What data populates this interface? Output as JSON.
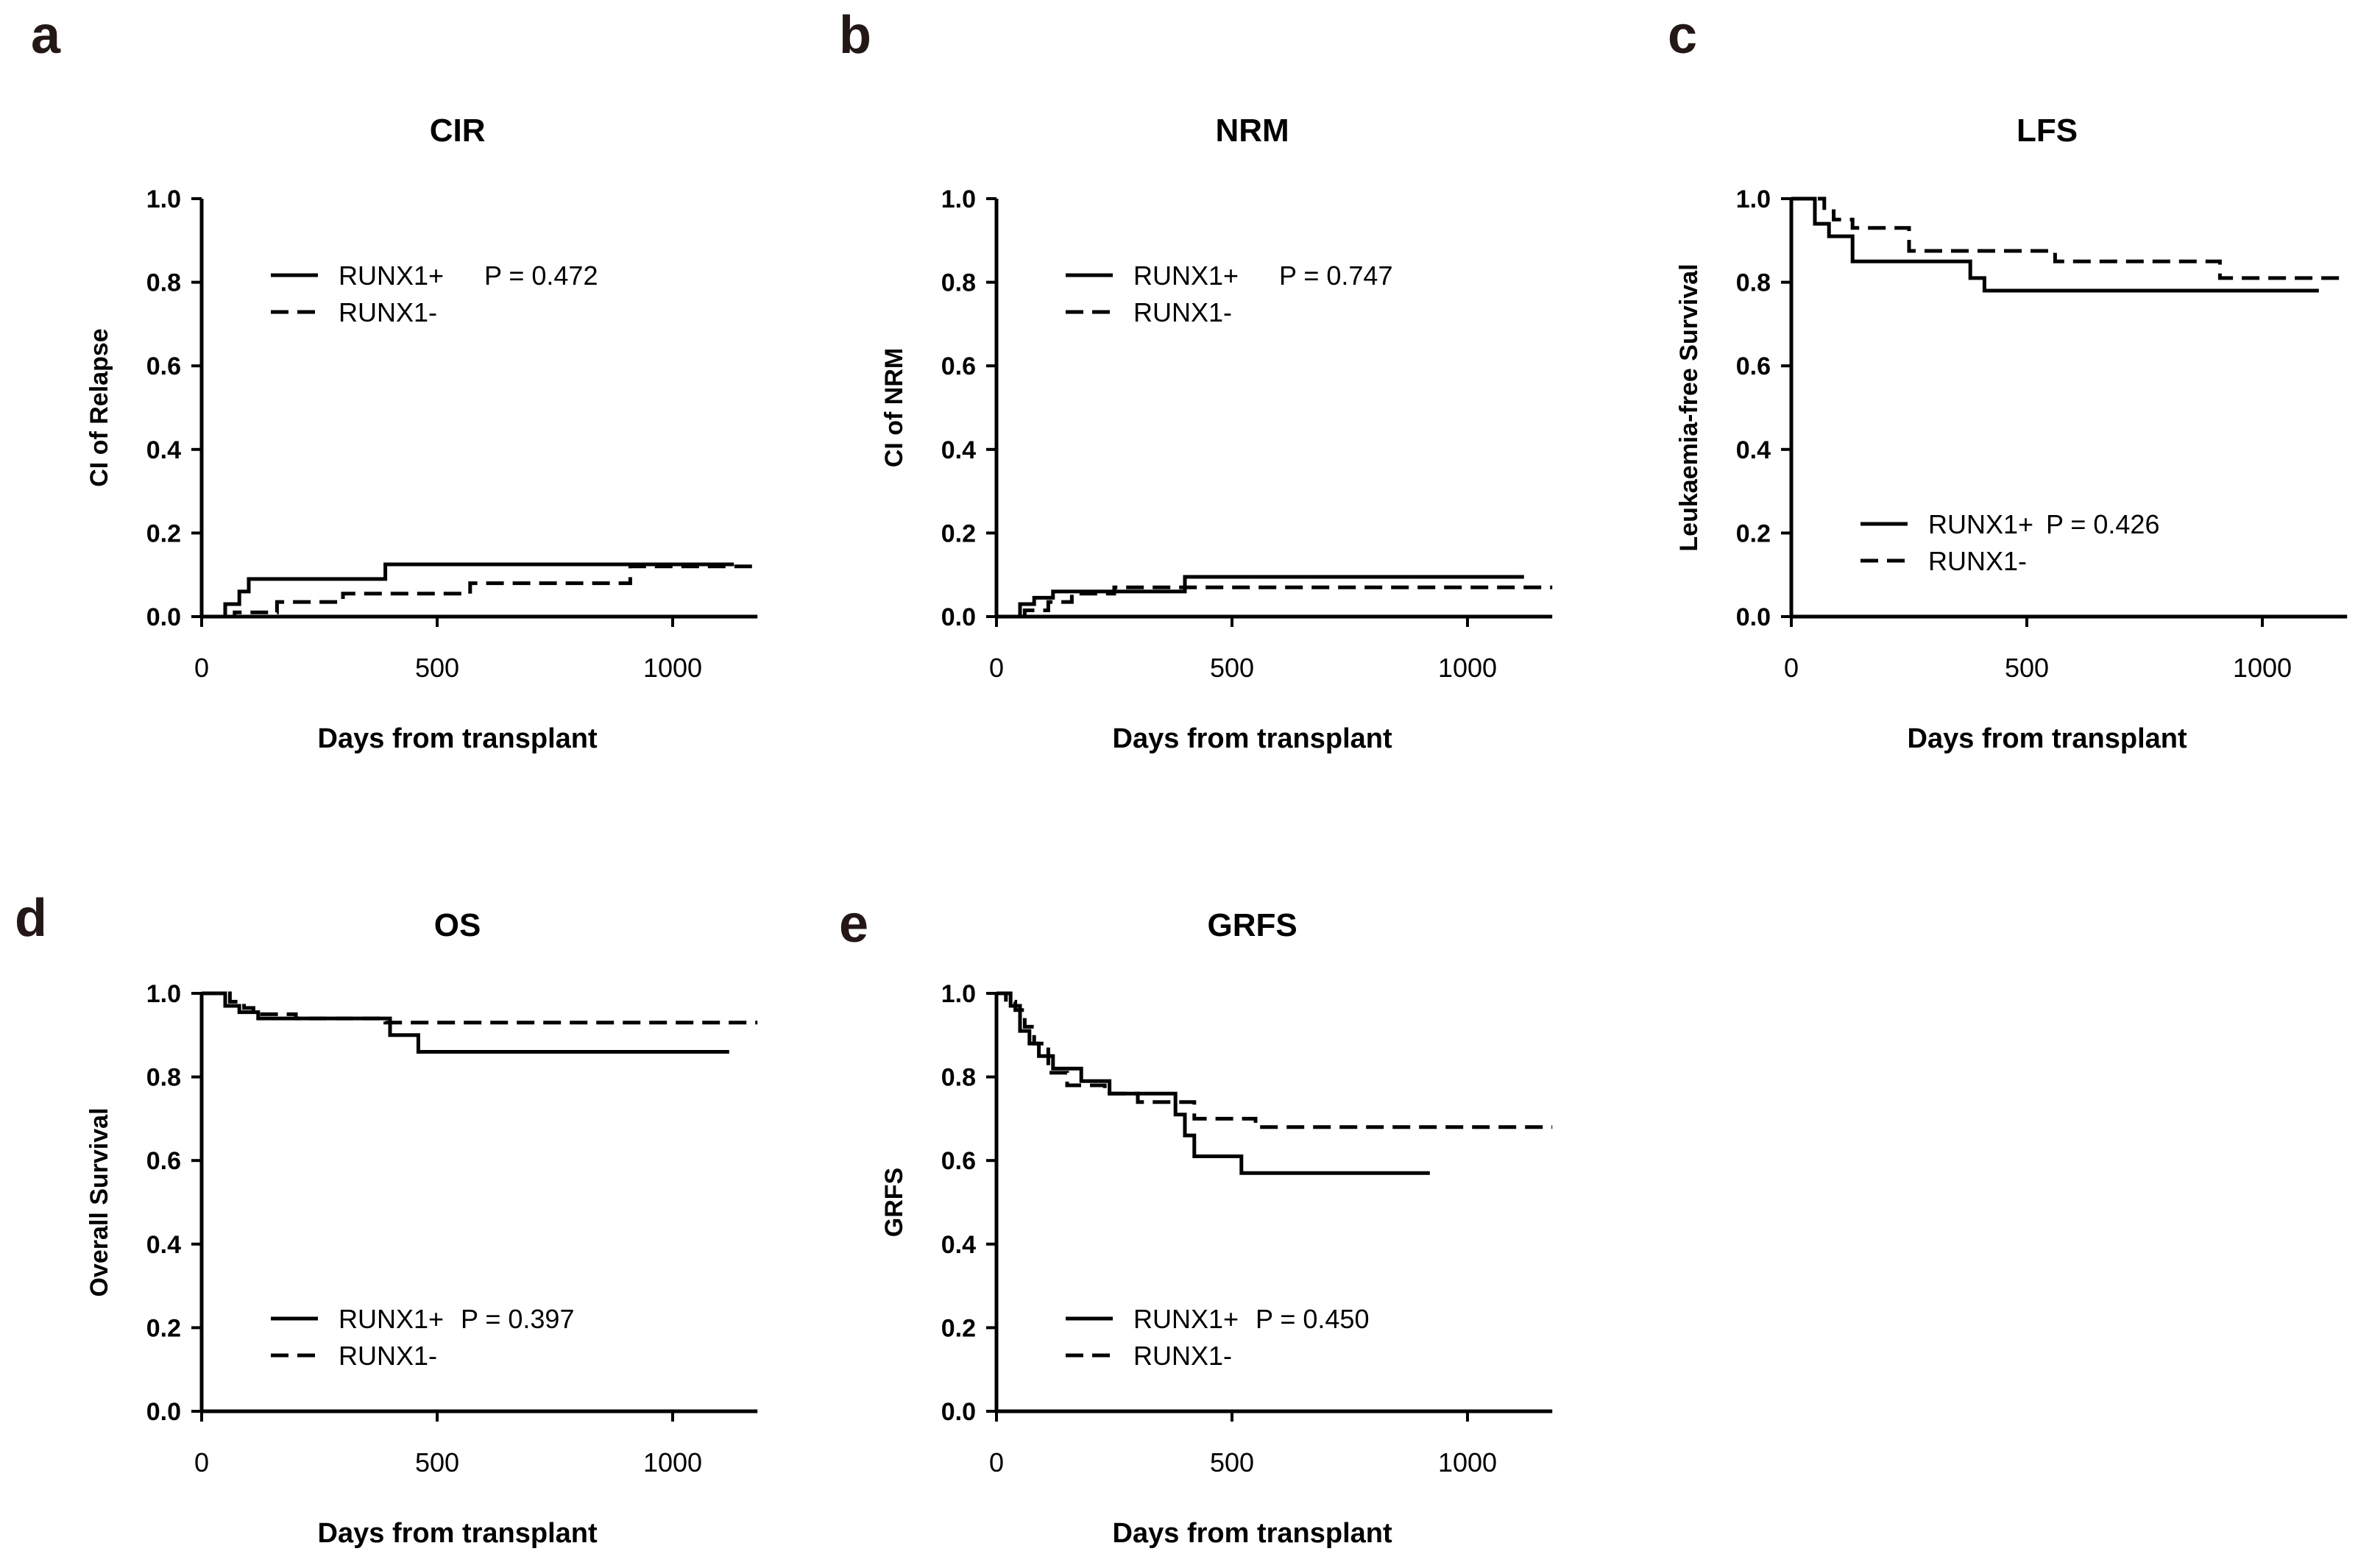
{
  "chart_data": [
    {
      "panel": "a",
      "type": "line",
      "title": "CIR",
      "xlabel": "Days from transplant",
      "ylabel": "CI of Relapse",
      "xlim": [
        0,
        1180
      ],
      "ylim": [
        0,
        1.0
      ],
      "xticks": [
        "0",
        "500",
        "1000"
      ],
      "yticks": [
        "0.0",
        "0.2",
        "0.4",
        "0.6",
        "0.8",
        "1.0"
      ],
      "legend": {
        "position": "top-left",
        "pvalue": "P = 0.472"
      },
      "series": [
        {
          "name": "RUNX1+",
          "style": "solid",
          "x": [
            0,
            50,
            50,
            80,
            80,
            100,
            100,
            130,
            130,
            390,
            390,
            1130
          ],
          "y": [
            0,
            0,
            0.03,
            0.03,
            0.06,
            0.06,
            0.09,
            0.09,
            0.09,
            0.09,
            0.125,
            0.125
          ]
        },
        {
          "name": "RUNX1-",
          "style": "dashed",
          "x": [
            0,
            70,
            70,
            160,
            160,
            300,
            300,
            570,
            570,
            910,
            910,
            1180
          ],
          "y": [
            0,
            0,
            0.01,
            0.01,
            0.035,
            0.035,
            0.055,
            0.055,
            0.08,
            0.08,
            0.12,
            0.12
          ]
        }
      ]
    },
    {
      "panel": "b",
      "type": "line",
      "title": "NRM",
      "xlabel": "Days from transplant",
      "ylabel": "CI of NRM",
      "xlim": [
        0,
        1180
      ],
      "ylim": [
        0,
        1.0
      ],
      "xticks": [
        "0",
        "500",
        "1000"
      ],
      "yticks": [
        "0.0",
        "0.2",
        "0.4",
        "0.6",
        "0.8",
        "1.0"
      ],
      "legend": {
        "position": "top-left",
        "pvalue": "P = 0.747"
      },
      "series": [
        {
          "name": "RUNX1+",
          "style": "solid",
          "x": [
            0,
            50,
            50,
            80,
            80,
            120,
            120,
            400,
            400,
            1120
          ],
          "y": [
            0,
            0,
            0.03,
            0.03,
            0.045,
            0.045,
            0.06,
            0.06,
            0.095,
            0.095
          ]
        },
        {
          "name": "RUNX1-",
          "style": "dashed",
          "x": [
            0,
            60,
            60,
            110,
            110,
            160,
            160,
            250,
            250,
            1180
          ],
          "y": [
            0,
            0,
            0.015,
            0.015,
            0.035,
            0.035,
            0.055,
            0.055,
            0.07,
            0.07
          ]
        }
      ]
    },
    {
      "panel": "c",
      "type": "line",
      "title": "LFS",
      "xlabel": "Days from transplant",
      "ylabel": "Leukaemia-free Survival",
      "xlim": [
        0,
        1180
      ],
      "ylim": [
        0,
        1.0
      ],
      "xticks": [
        "0",
        "500",
        "1000"
      ],
      "yticks": [
        "0.0",
        "0.2",
        "0.4",
        "0.6",
        "0.8",
        "1.0"
      ],
      "legend": {
        "position": "bottom-left",
        "pvalue": "P = 0.426"
      },
      "series": [
        {
          "name": "RUNX1+",
          "style": "solid",
          "x": [
            0,
            50,
            50,
            80,
            80,
            100,
            100,
            130,
            130,
            380,
            380,
            410,
            410,
            1120
          ],
          "y": [
            1.0,
            1.0,
            0.94,
            0.94,
            0.91,
            0.91,
            0.91,
            0.91,
            0.85,
            0.85,
            0.81,
            0.81,
            0.78,
            0.78
          ]
        },
        {
          "name": "RUNX1-",
          "style": "dashed",
          "x": [
            0,
            70,
            70,
            90,
            90,
            130,
            130,
            250,
            250,
            560,
            560,
            910,
            910,
            1180
          ],
          "y": [
            1.0,
            1.0,
            0.97,
            0.97,
            0.95,
            0.95,
            0.93,
            0.93,
            0.875,
            0.875,
            0.85,
            0.85,
            0.81,
            0.81
          ]
        }
      ]
    },
    {
      "panel": "d",
      "type": "line",
      "title": "OS",
      "xlabel": "Days from transplant",
      "ylabel": "Overall Survival",
      "xlim": [
        0,
        1180
      ],
      "ylim": [
        0,
        1.0
      ],
      "xticks": [
        "0",
        "500",
        "1000"
      ],
      "yticks": [
        "0.0",
        "0.2",
        "0.4",
        "0.6",
        "0.8",
        "1.0"
      ],
      "legend": {
        "position": "bottom-left",
        "pvalue": "P = 0.397"
      },
      "series": [
        {
          "name": "RUNX1+",
          "style": "solid",
          "x": [
            0,
            50,
            50,
            80,
            80,
            120,
            120,
            400,
            400,
            460,
            460,
            1120
          ],
          "y": [
            1.0,
            1.0,
            0.97,
            0.97,
            0.955,
            0.955,
            0.94,
            0.94,
            0.9,
            0.9,
            0.86,
            0.86
          ]
        },
        {
          "name": "RUNX1-",
          "style": "dashed",
          "x": [
            0,
            60,
            60,
            90,
            90,
            110,
            110,
            200,
            200,
            390,
            390,
            1180
          ],
          "y": [
            1.0,
            1.0,
            0.98,
            0.98,
            0.965,
            0.965,
            0.95,
            0.95,
            0.94,
            0.94,
            0.93,
            0.93
          ]
        }
      ]
    },
    {
      "panel": "e",
      "type": "line",
      "title": "GRFS",
      "xlabel": "Days from transplant",
      "ylabel": "GRFS",
      "xlim": [
        0,
        1180
      ],
      "ylim": [
        0,
        1.0
      ],
      "xticks": [
        "0",
        "500",
        "1000"
      ],
      "yticks": [
        "0.0",
        "0.2",
        "0.4",
        "0.6",
        "0.8",
        "1.0"
      ],
      "legend": {
        "position": "bottom-left",
        "pvalue": "P = 0.450"
      },
      "series": [
        {
          "name": "RUNX1+",
          "style": "solid",
          "x": [
            0,
            30,
            30,
            50,
            50,
            70,
            70,
            90,
            90,
            120,
            120,
            180,
            180,
            240,
            240,
            380,
            380,
            400,
            400,
            420,
            420,
            520,
            520,
            920
          ],
          "y": [
            1.0,
            1.0,
            0.97,
            0.97,
            0.91,
            0.91,
            0.88,
            0.88,
            0.85,
            0.85,
            0.82,
            0.82,
            0.79,
            0.79,
            0.76,
            0.76,
            0.71,
            0.71,
            0.66,
            0.66,
            0.61,
            0.61,
            0.57,
            0.57
          ]
        },
        {
          "name": "RUNX1-",
          "style": "dashed",
          "x": [
            0,
            20,
            20,
            40,
            40,
            60,
            60,
            80,
            80,
            110,
            110,
            150,
            150,
            230,
            230,
            300,
            300,
            420,
            420,
            550,
            550,
            1180
          ],
          "y": [
            1.0,
            1.0,
            0.98,
            0.98,
            0.96,
            0.96,
            0.92,
            0.92,
            0.88,
            0.88,
            0.81,
            0.81,
            0.78,
            0.78,
            0.76,
            0.76,
            0.74,
            0.74,
            0.7,
            0.7,
            0.68,
            0.68
          ]
        }
      ]
    }
  ]
}
